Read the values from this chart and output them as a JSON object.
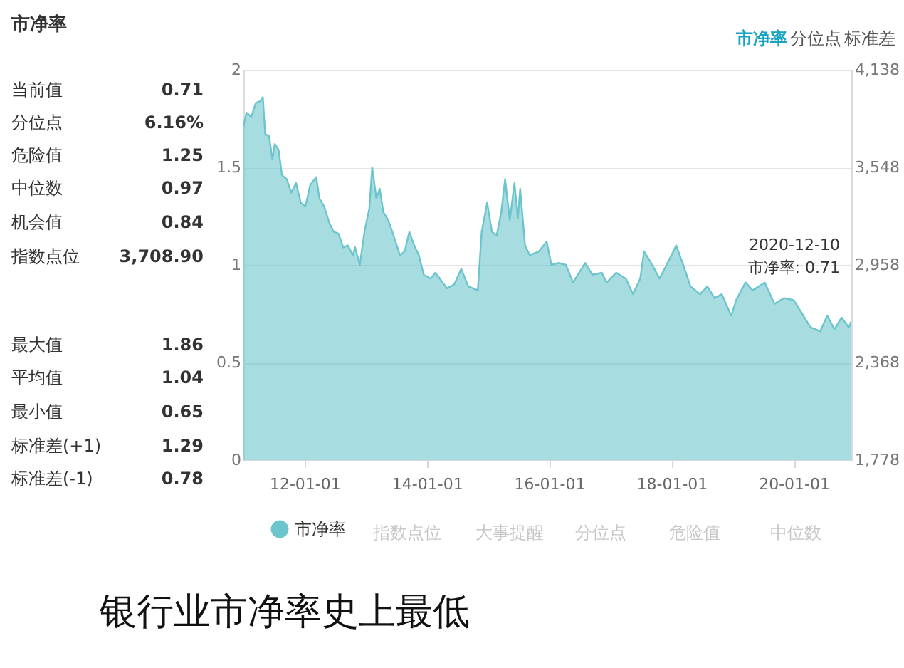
{
  "chart_data": {
    "type": "area",
    "title": "市净率",
    "annotations": [
      "当前值 0.71",
      "分位点 6.16%",
      "危险值 1.25",
      "中位数 0.97",
      "机会值 0.84",
      "指数点位 3,708.90",
      "最大值 1.86",
      "平均值 1.04",
      "最小值 0.65",
      "标准差(+1) 1.29",
      "标准差(-1) 0.78",
      "市净率",
      "分位点",
      "标准差",
      "指数点位",
      "大事提醒",
      "分位点",
      "危险值",
      "中位数",
      {
        "text": "2020-12-10\n市净率: 0.71",
        "x": "2020-12-10",
        "y": 0.71
      },
      "银行业市净率史上最低"
    ],
    "x": [
      "2011-01-01",
      "2011-01-19",
      "2011-02-17",
      "2011-03-16",
      "2011-04-13",
      "2011-04-27",
      "2011-05-11",
      "2011-06-03",
      "2011-06-23",
      "2011-07-07",
      "2011-07-30",
      "2011-08-19",
      "2011-09-16",
      "2011-10-14",
      "2011-11-11",
      "2011-12-09",
      "2012-01-06",
      "2012-02-04",
      "2012-03-11",
      "2012-03-30",
      "2012-04-27",
      "2012-05-26",
      "2012-06-23",
      "2012-07-22",
      "2012-08-19",
      "2012-09-16",
      "2012-10-15",
      "2012-10-29",
      "2012-11-26",
      "2012-12-24",
      "2013-01-22",
      "2013-02-08",
      "2013-03-05",
      "2013-03-25",
      "2013-04-16",
      "2013-05-15",
      "2013-06-12",
      "2013-07-24",
      "2013-08-21",
      "2013-09-18",
      "2013-10-17",
      "2013-11-14",
      "2013-12-13",
      "2014-01-23",
      "2014-02-20",
      "2014-03-19",
      "2014-05-01",
      "2014-06-13",
      "2014-07-25",
      "2014-09-05",
      "2014-11-01",
      "2014-11-24",
      "2014-12-27",
      "2015-01-24",
      "2015-02-21",
      "2015-03-21",
      "2015-04-13",
      "2015-05-11",
      "2015-06-08",
      "2015-06-28",
      "2015-07-12",
      "2015-08-10",
      "2015-09-07",
      "2015-11-02",
      "2015-12-17",
      "2016-01-15",
      "2016-02-27",
      "2016-04-10",
      "2016-05-23",
      "2016-08-03",
      "2016-09-15",
      "2016-11-11",
      "2016-12-09",
      "2017-02-05",
      "2017-04-03",
      "2017-05-16",
      "2017-06-28",
      "2017-07-21",
      "2017-09-08",
      "2017-10-21",
      "2017-12-03",
      "2018-01-29",
      "2018-03-12",
      "2018-04-24",
      "2018-06-21",
      "2018-08-03",
      "2018-09-15",
      "2018-10-28",
      "2018-12-24",
      "2019-01-22",
      "2019-03-19",
      "2019-05-01",
      "2019-07-12",
      "2019-09-08",
      "2019-11-04",
      "2020-01-01",
      "2020-02-27",
      "2020-04-10",
      "2020-06-07",
      "2020-07-19",
      "2020-08-31",
      "2020-10-13",
      "2020-11-25",
      "2020-12-10"
    ],
    "series": [
      {
        "name": "市净率",
        "color": "#6cc5cd",
        "values": [
          1.71,
          1.78,
          1.76,
          1.83,
          1.84,
          1.86,
          1.67,
          1.66,
          1.54,
          1.62,
          1.59,
          1.46,
          1.44,
          1.37,
          1.42,
          1.32,
          1.3,
          1.41,
          1.45,
          1.34,
          1.3,
          1.22,
          1.17,
          1.16,
          1.09,
          1.1,
          1.05,
          1.09,
          1.0,
          1.17,
          1.29,
          1.5,
          1.34,
          1.39,
          1.27,
          1.23,
          1.16,
          1.05,
          1.07,
          1.17,
          1.1,
          1.05,
          0.95,
          0.93,
          0.96,
          0.93,
          0.88,
          0.9,
          0.98,
          0.89,
          0.87,
          1.17,
          1.32,
          1.17,
          1.15,
          1.27,
          1.44,
          1.23,
          1.42,
          1.24,
          1.39,
          1.1,
          1.05,
          1.07,
          1.12,
          1.0,
          1.01,
          1.0,
          0.91,
          1.01,
          0.95,
          0.96,
          0.91,
          0.96,
          0.93,
          0.85,
          0.93,
          1.07,
          1.0,
          0.93,
          1.0,
          1.1,
          1.0,
          0.89,
          0.85,
          0.89,
          0.83,
          0.85,
          0.74,
          0.82,
          0.91,
          0.87,
          0.91,
          0.8,
          0.83,
          0.82,
          0.74,
          0.68,
          0.66,
          0.74,
          0.67,
          0.73,
          0.68,
          0.71
        ]
      }
    ],
    "xlim": [
      "2011-01-01",
      "2020-12-10"
    ],
    "xticks": [
      {
        "value": "2012-01-01",
        "label": "12-01-01"
      },
      {
        "value": "2014-01-01",
        "label": "14-01-01"
      },
      {
        "value": "2016-01-01",
        "label": "16-01-01"
      },
      {
        "value": "2018-01-01",
        "label": "18-01-01"
      },
      {
        "value": "2020-01-01",
        "label": "20-01-01"
      }
    ],
    "ylim": [
      0,
      2
    ],
    "yticks": [
      0,
      0.5,
      1,
      1.5,
      2
    ],
    "y2lim": [
      1778,
      4138
    ],
    "y2ticks": [
      {
        "value": 1778,
        "label": "1,778"
      },
      {
        "value": 2368,
        "label": "2,368"
      },
      {
        "value": 2958,
        "label": "2,958"
      },
      {
        "value": 3548,
        "label": "3,548"
      },
      {
        "value": 4138,
        "label": "4,138"
      }
    ],
    "grid": "y",
    "legend": "bottom"
  }
}
